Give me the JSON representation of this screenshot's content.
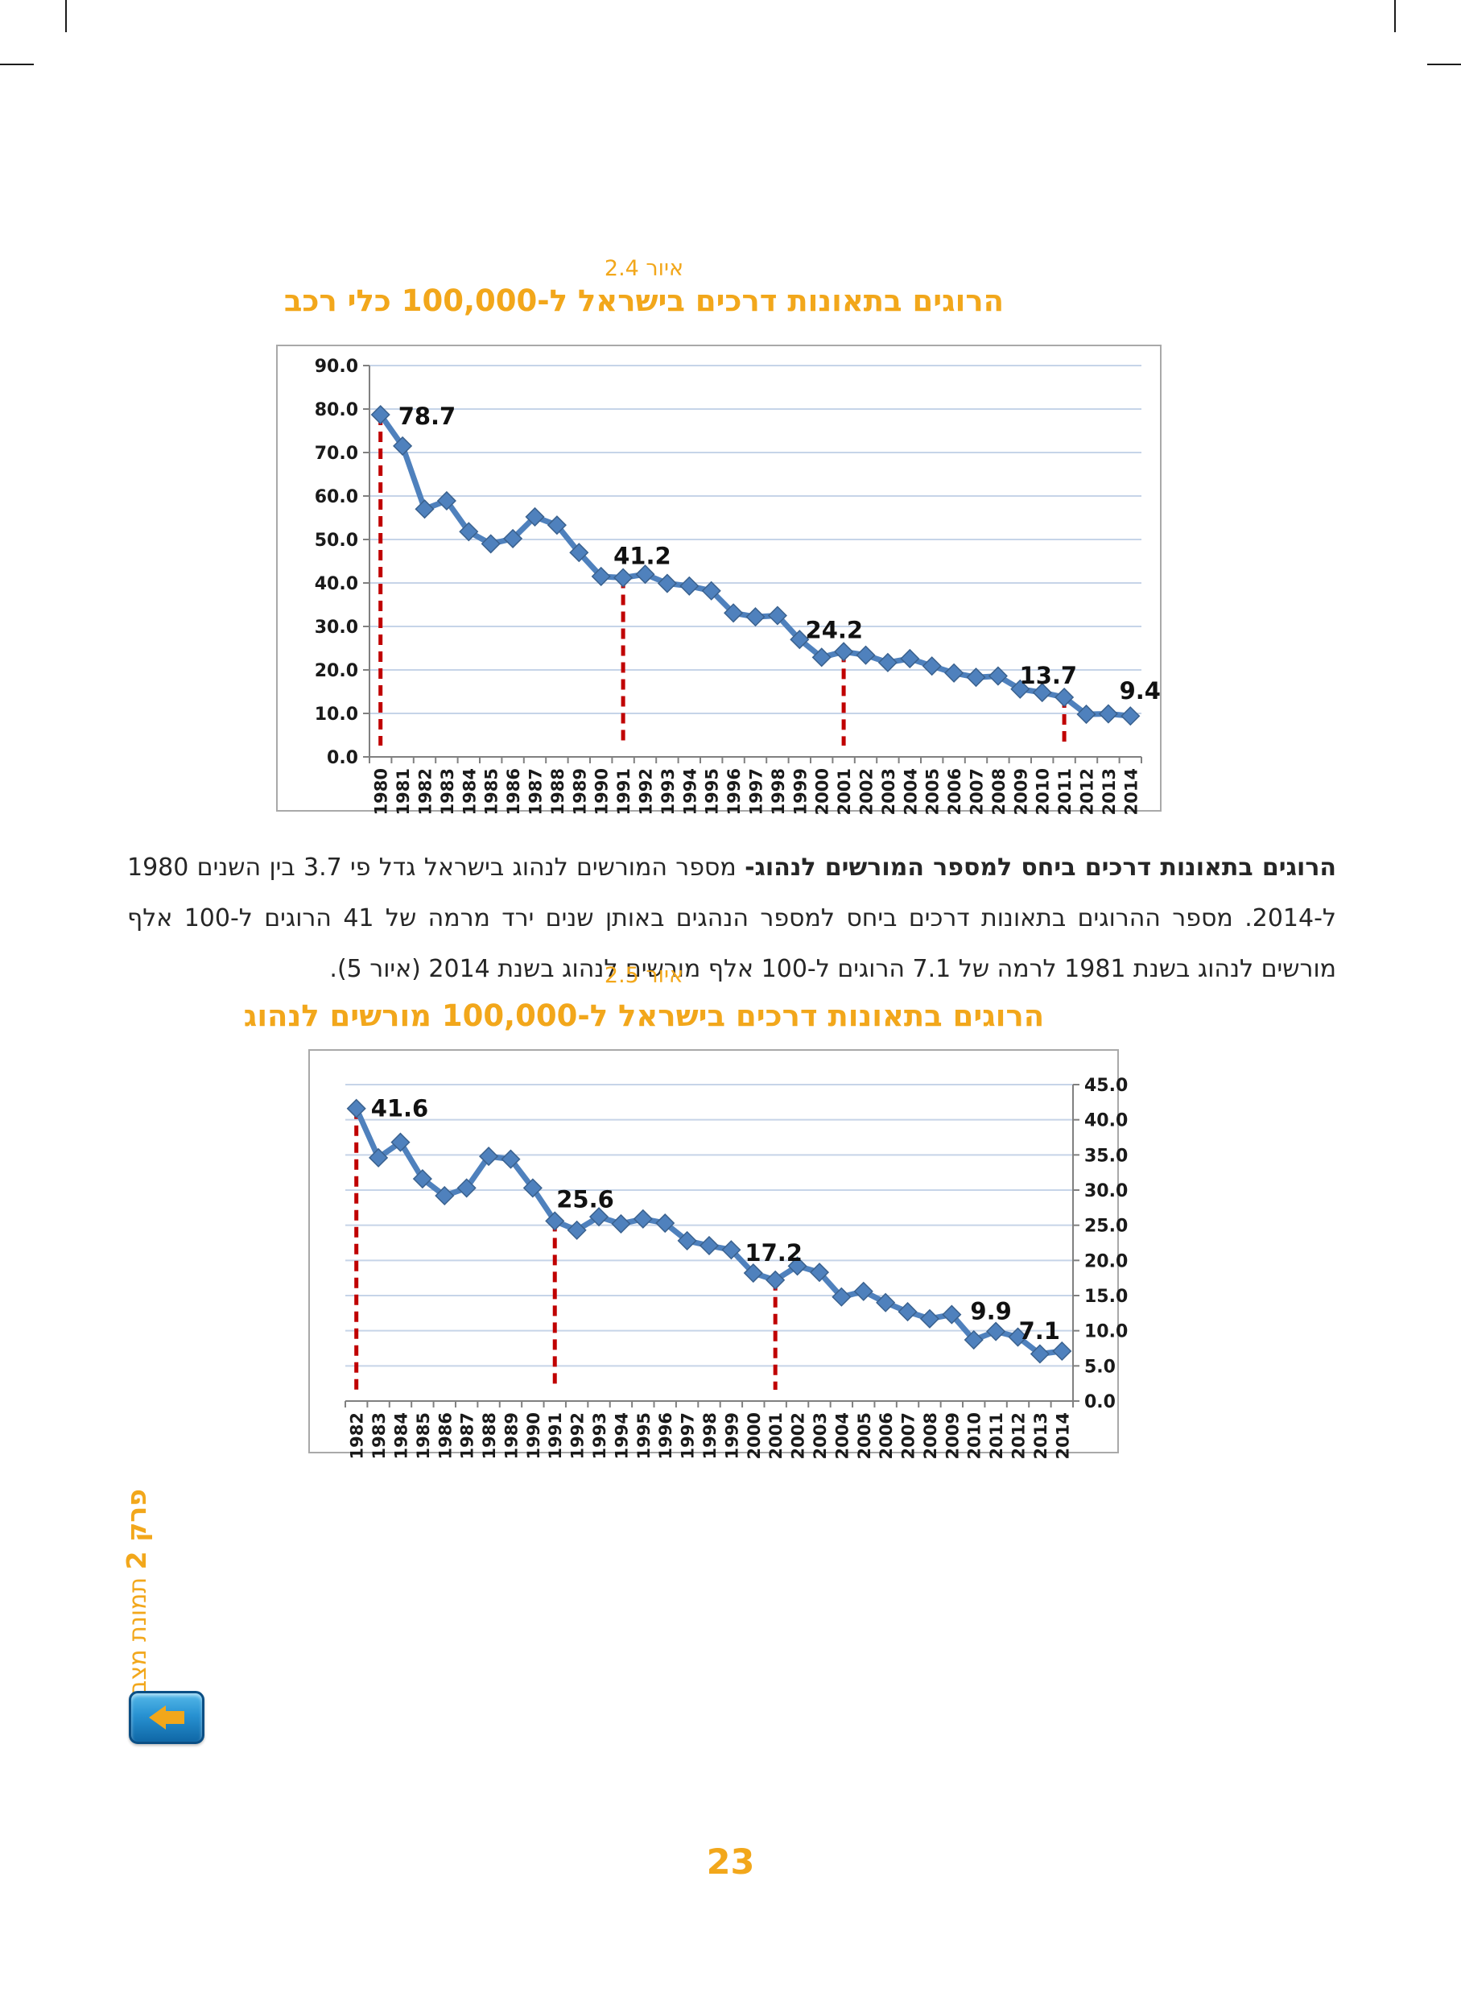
{
  "page": {
    "number": "23"
  },
  "sidebar": {
    "chapter": "פרק 2",
    "section": "תמונת מצב"
  },
  "nav": {
    "back_button": "back-arrow"
  },
  "paragraph": {
    "line1_bold": "הרוגים בתאונות דרכים ביחס למספר המורשים לנהוג-",
    "line1_rest": " מספר המורשים לנהוג בישראל גדל פי 3.7 בין השנים 1980",
    "line2": "ל-2014. מספר ההרוגים בתאונות דרכים ביחס למספר הנהגים באותן שנים ירד מרמה של 41 הרוגים ל-100 אלף",
    "line3": "מורשים לנהוג בשנת 1981 לרמה של 7.1 הרוגים ל-100 אלף מורשים לנהוג בשנת 2014 (איור 5)."
  },
  "colors": {
    "accent_orange": "#F2A71B",
    "line_blue": "#4F81BD",
    "dash_red": "#C00000",
    "gridline": "#c6d4e8",
    "axis_gray": "#808080"
  },
  "chart_data": [
    {
      "type": "line",
      "caption": "איור 2.4",
      "title": "הרוגים בתאונות דרכים בישראל ל-100,000 כלי רכב",
      "x": [
        1980,
        1981,
        1982,
        1983,
        1984,
        1985,
        1986,
        1987,
        1988,
        1989,
        1990,
        1991,
        1992,
        1993,
        1994,
        1995,
        1996,
        1997,
        1998,
        1999,
        2000,
        2001,
        2002,
        2003,
        2004,
        2005,
        2006,
        2007,
        2008,
        2009,
        2010,
        2011,
        2012,
        2013,
        2014
      ],
      "series": [
        {
          "name": "הרוגים ל-100,000 כלי רכב",
          "values": [
            78.7,
            71.5,
            57.0,
            58.9,
            51.8,
            49.0,
            50.2,
            55.2,
            53.3,
            47.0,
            41.5,
            41.2,
            42.0,
            39.9,
            39.3,
            38.2,
            33.1,
            32.2,
            32.5,
            27.0,
            22.9,
            24.2,
            23.4,
            21.7,
            22.6,
            20.9,
            19.3,
            18.3,
            18.6,
            15.6,
            14.8,
            13.7,
            9.8,
            9.9,
            9.4
          ]
        }
      ],
      "ylim": [
        0,
        90
      ],
      "ytick_step": 10,
      "yticks": [
        "0.0",
        "10.0",
        "20.0",
        "30.0",
        "40.0",
        "50.0",
        "60.0",
        "70.0",
        "80.0",
        "90.0"
      ],
      "y_axis_side": "left",
      "grid": true,
      "legend": "none",
      "annotations": [
        {
          "x": 1980,
          "label": "78.7"
        },
        {
          "x": 1991,
          "label": "41.2"
        },
        {
          "x": 2001,
          "label": "24.2"
        },
        {
          "x": 2011,
          "label": "13.7"
        },
        {
          "x": 2014,
          "label": "9.4"
        }
      ],
      "dashed_vlines": [
        1980,
        1991,
        2001,
        2011
      ],
      "line_color": "#4F81BD",
      "dash_color": "#C00000"
    },
    {
      "type": "line",
      "caption": "איור 2.5",
      "title": "הרוגים בתאונות דרכים בישראל ל-100,000 מורשים לנהוג",
      "x": [
        1982,
        1983,
        1984,
        1985,
        1986,
        1987,
        1988,
        1989,
        1990,
        1991,
        1992,
        1993,
        1994,
        1995,
        1996,
        1997,
        1998,
        1999,
        2000,
        2001,
        2002,
        2003,
        2004,
        2005,
        2006,
        2007,
        2008,
        2009,
        2010,
        2011,
        2012,
        2013,
        2014
      ],
      "series": [
        {
          "name": "הרוגים ל-100,000 מורשים לנהוג",
          "values": [
            41.6,
            34.6,
            36.8,
            31.6,
            29.2,
            30.3,
            34.8,
            34.4,
            30.3,
            25.6,
            24.3,
            26.2,
            25.2,
            25.9,
            25.3,
            22.8,
            22.1,
            21.5,
            18.2,
            17.2,
            19.2,
            18.3,
            14.8,
            15.6,
            14.0,
            12.7,
            11.7,
            12.3,
            8.7,
            9.9,
            9.1,
            6.7,
            7.1
          ]
        }
      ],
      "ylim": [
        0,
        45
      ],
      "ytick_step": 5,
      "yticks": [
        "0.0",
        "5.0",
        "10.0",
        "15.0",
        "20.0",
        "25.0",
        "30.0",
        "35.0",
        "40.0",
        "45.0"
      ],
      "y_axis_side": "right",
      "grid": true,
      "legend": "none",
      "annotations": [
        {
          "x": 1982,
          "label": "41.6"
        },
        {
          "x": 1991,
          "label": "25.6"
        },
        {
          "x": 2001,
          "label": "17.2"
        },
        {
          "x": 2011,
          "label": "9.9"
        },
        {
          "x": 2014,
          "label": "7.1"
        }
      ],
      "dashed_vlines": [
        1982,
        1991,
        2001
      ],
      "line_color": "#4F81BD",
      "dash_color": "#C00000"
    }
  ]
}
